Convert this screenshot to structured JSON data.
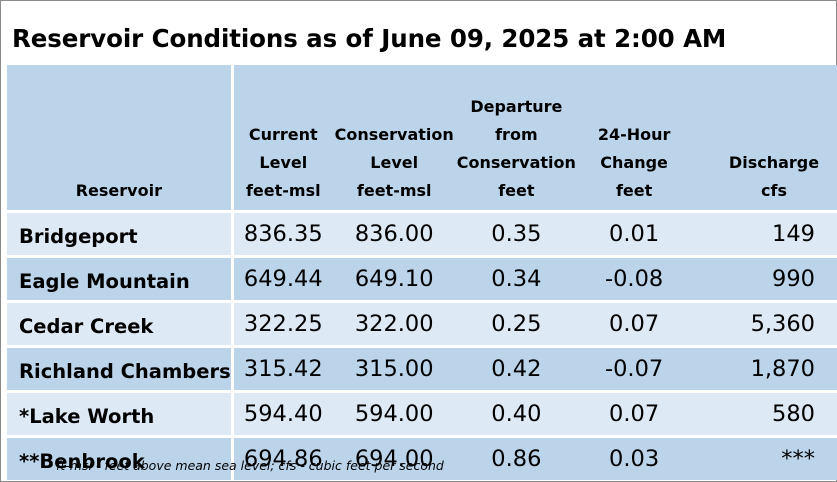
{
  "title": "Reservoir Conditions as of June 09, 2025 at 2:00 AM",
  "table": {
    "headers": [
      [
        "Reservoir"
      ],
      [
        "Current",
        "Level",
        "feet-msl"
      ],
      [
        "Conservation",
        "Level",
        "feet-msl"
      ],
      [
        "Departure",
        "from",
        "Conservation",
        "feet"
      ],
      [
        "24-Hour",
        "Change",
        "feet"
      ],
      [
        "Discharge",
        "cfs"
      ]
    ],
    "rows": [
      {
        "name": "Bridgeport",
        "current": "836.35",
        "conservation": "836.00",
        "departure": "0.35",
        "change": "0.01",
        "discharge": "149"
      },
      {
        "name": "Eagle Mountain",
        "current": "649.44",
        "conservation": "649.10",
        "departure": "0.34",
        "change": "-0.08",
        "discharge": "990"
      },
      {
        "name": "Cedar Creek",
        "current": "322.25",
        "conservation": "322.00",
        "departure": "0.25",
        "change": "0.07",
        "discharge": "5,360"
      },
      {
        "name": "Richland Chambers",
        "current": "315.42",
        "conservation": "315.00",
        "departure": "0.42",
        "change": "-0.07",
        "discharge": "1,870"
      },
      {
        "name": "*Lake Worth",
        "current": "594.40",
        "conservation": "594.00",
        "departure": "0.40",
        "change": "0.07",
        "discharge": "580"
      },
      {
        "name": "**Benbrook",
        "current": "694.86",
        "conservation": "694.00",
        "departure": "0.86",
        "change": "0.03",
        "discharge": "***"
      }
    ]
  },
  "footnote": "ft-msl - feet above mean sea level; cfs - cubic feet per second"
}
